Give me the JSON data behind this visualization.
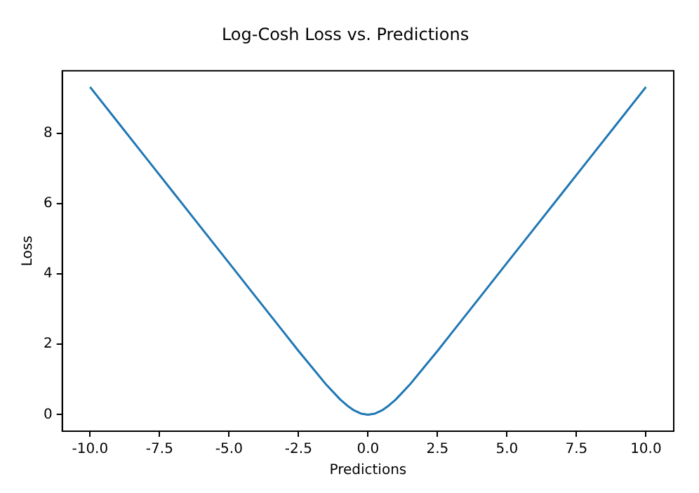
{
  "chart_data": {
    "type": "line",
    "title": "Log-Cosh Loss vs. Predictions",
    "xlabel": "Predictions",
    "ylabel": "Loss",
    "x": [
      -10,
      -9,
      -8,
      -7,
      -6,
      -5,
      -4,
      -3,
      -2.5,
      -2,
      -1.5,
      -1,
      -0.75,
      -0.5,
      -0.25,
      0,
      0.25,
      0.5,
      0.75,
      1,
      1.5,
      2,
      2.5,
      3,
      4,
      5,
      6,
      7,
      8,
      9,
      10
    ],
    "series": [
      {
        "color": "#1f77b4",
        "values": [
          9.31,
          8.31,
          7.31,
          6.31,
          5.31,
          4.31,
          3.31,
          2.31,
          1.81,
          1.33,
          0.85,
          0.43,
          0.26,
          0.12,
          0.03,
          0,
          0.03,
          0.12,
          0.26,
          0.43,
          0.85,
          1.33,
          1.81,
          2.31,
          3.31,
          4.31,
          5.31,
          6.31,
          7.31,
          8.31,
          9.31
        ]
      }
    ],
    "xlim": [
      -11,
      11
    ],
    "ylim": [
      -0.47,
      9.77
    ],
    "xticks": [
      {
        "value": -10,
        "label": "-10.0"
      },
      {
        "value": -7.5,
        "label": "-7.5"
      },
      {
        "value": -5,
        "label": "-5.0"
      },
      {
        "value": -2.5,
        "label": "-2.5"
      },
      {
        "value": 0,
        "label": "0.0"
      },
      {
        "value": 2.5,
        "label": "2.5"
      },
      {
        "value": 5,
        "label": "5.0"
      },
      {
        "value": 7.5,
        "label": "7.5"
      },
      {
        "value": 10,
        "label": "10.0"
      }
    ],
    "yticks": [
      0,
      2,
      4,
      6,
      8
    ],
    "grid": false,
    "legend": false,
    "marker": "none",
    "line_style": "solid"
  }
}
